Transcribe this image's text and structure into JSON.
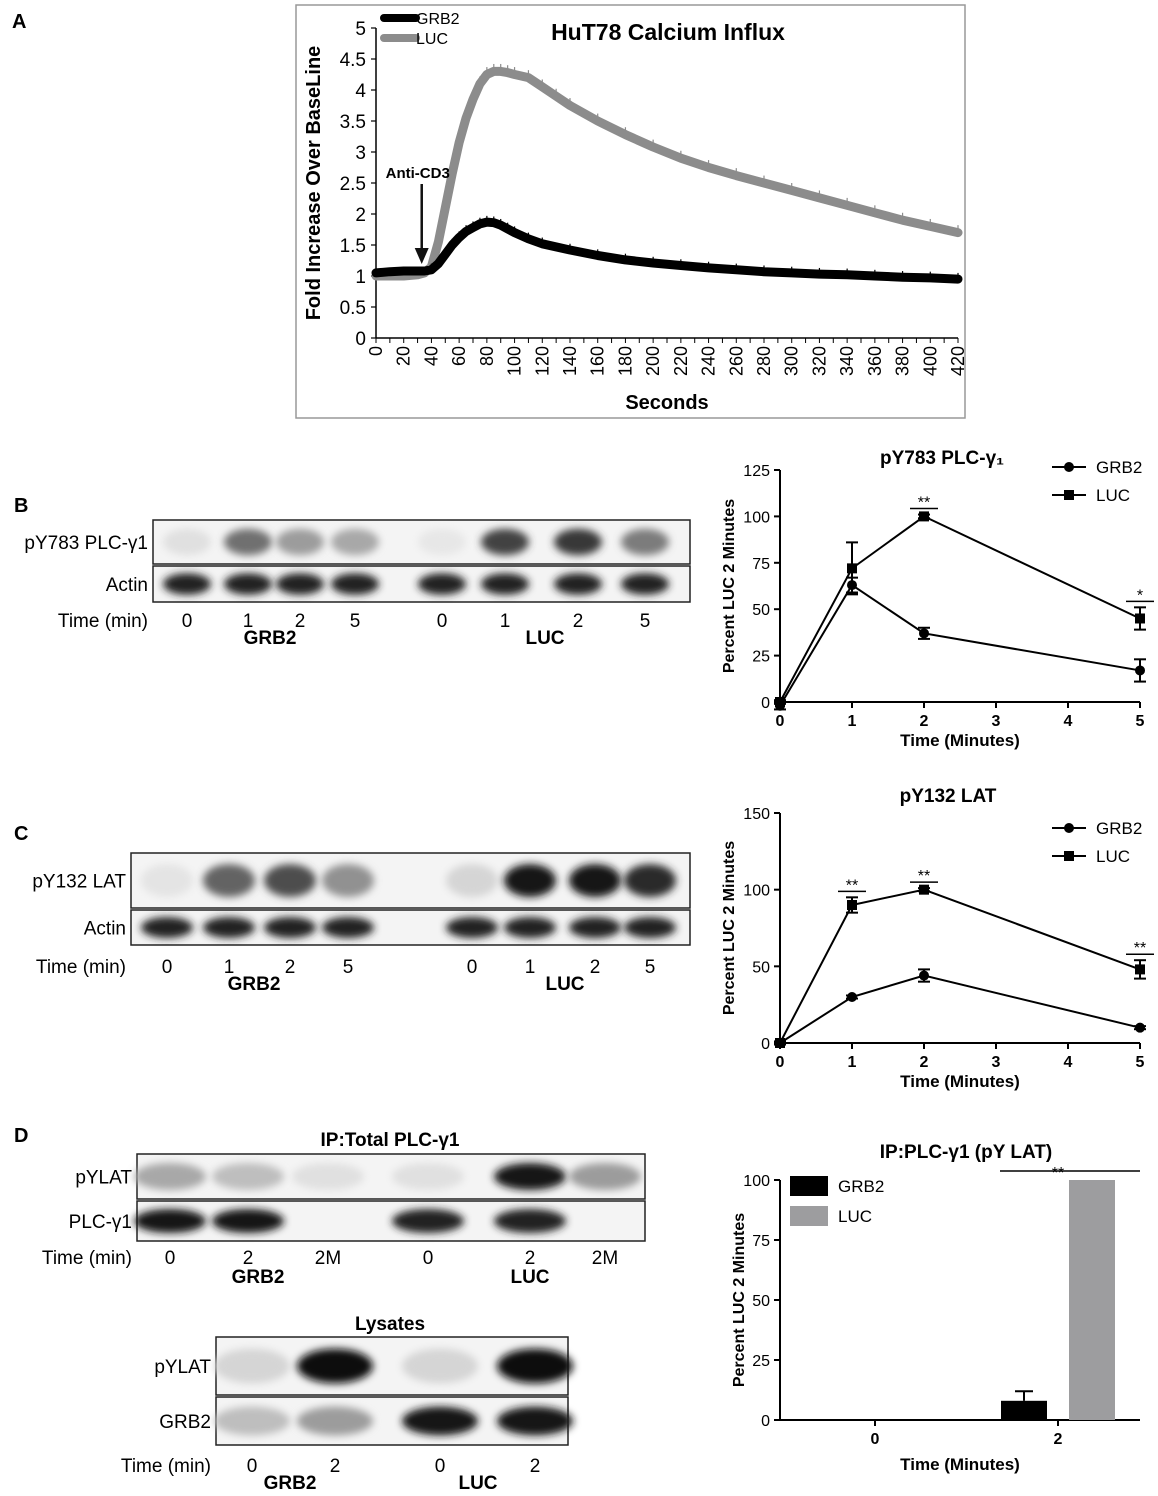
{
  "panel_letters": {
    "a": "A",
    "b": "B",
    "c": "C",
    "d": "D"
  },
  "chart_data": [
    {
      "id": "calcium",
      "type": "line",
      "title": "HuT78 Calcium Influx",
      "xlabel": "Seconds",
      "ylabel": "Fold Increase Over BaseLine",
      "xlim": [
        0,
        420
      ],
      "ylim": [
        0,
        5
      ],
      "xticks": [
        "0",
        "10",
        "20",
        "30",
        "40",
        "50",
        "60",
        "70",
        "80",
        "90",
        "100",
        "110",
        "120",
        "130",
        "140",
        "150",
        "160",
        "170",
        "180",
        "190",
        "200",
        "210",
        "220",
        "230",
        "240",
        "250",
        "260",
        "270",
        "280",
        "290",
        "300",
        "310",
        "320",
        "330",
        "340",
        "350",
        "360",
        "370",
        "380",
        "390",
        "400",
        "410",
        "420"
      ],
      "xtick_labels_shown": [
        "0",
        "20",
        "40",
        "60",
        "80",
        "100",
        "120",
        "140",
        "160",
        "180",
        "200",
        "220",
        "240",
        "260",
        "280",
        "300",
        "320",
        "340",
        "360",
        "380",
        "400",
        "420"
      ],
      "yticks": [
        "0",
        "0.5",
        "1",
        "1.5",
        "2",
        "2.5",
        "3",
        "3.5",
        "4",
        "4.5",
        "5"
      ],
      "annotation": "Anti-CD3",
      "annotation_x": 33,
      "legend_position": "top-left",
      "series": [
        {
          "name": "GRB2",
          "color": "#000000",
          "x": [
            0,
            10,
            20,
            30,
            35,
            40,
            45,
            50,
            55,
            60,
            65,
            70,
            75,
            80,
            85,
            90,
            95,
            100,
            110,
            120,
            140,
            160,
            180,
            200,
            220,
            240,
            260,
            280,
            300,
            320,
            340,
            360,
            380,
            400,
            420
          ],
          "y": [
            1.05,
            1.07,
            1.08,
            1.08,
            1.08,
            1.1,
            1.2,
            1.35,
            1.5,
            1.62,
            1.72,
            1.78,
            1.84,
            1.87,
            1.86,
            1.82,
            1.76,
            1.7,
            1.6,
            1.52,
            1.42,
            1.33,
            1.26,
            1.21,
            1.17,
            1.13,
            1.1,
            1.07,
            1.05,
            1.03,
            1.02,
            1.0,
            0.98,
            0.97,
            0.95
          ]
        },
        {
          "name": "LUC",
          "color": "#8c8c8c",
          "x": [
            0,
            10,
            20,
            30,
            35,
            40,
            45,
            50,
            55,
            60,
            65,
            70,
            75,
            80,
            85,
            90,
            95,
            100,
            110,
            120,
            130,
            140,
            160,
            180,
            200,
            220,
            240,
            260,
            280,
            300,
            320,
            340,
            360,
            380,
            400,
            420
          ],
          "y": [
            1.0,
            1.0,
            1.0,
            1.02,
            1.05,
            1.15,
            1.55,
            2.1,
            2.65,
            3.15,
            3.55,
            3.85,
            4.1,
            4.25,
            4.3,
            4.3,
            4.28,
            4.25,
            4.2,
            4.05,
            3.9,
            3.75,
            3.5,
            3.28,
            3.08,
            2.9,
            2.75,
            2.62,
            2.5,
            2.38,
            2.26,
            2.14,
            2.02,
            1.9,
            1.8,
            1.7
          ]
        }
      ]
    },
    {
      "id": "plc",
      "type": "line",
      "title": "pY783 PLC-γ₁",
      "xlabel": "Time (Minutes)",
      "ylabel": "Percent LUC 2 Minutes",
      "xlim": [
        0,
        5
      ],
      "ylim": [
        0,
        125
      ],
      "xticks": [
        "0",
        "1",
        "2",
        "3",
        "4",
        "5"
      ],
      "yticks": [
        "0",
        "25",
        "50",
        "75",
        "100",
        "125"
      ],
      "legend_position": "top-right",
      "series": [
        {
          "name": "GRB2",
          "marker": "circle",
          "x": [
            0,
            1,
            2,
            5
          ],
          "y": [
            -2,
            63,
            37,
            17
          ],
          "err": [
            2,
            4,
            3,
            6
          ]
        },
        {
          "name": "LUC",
          "marker": "square",
          "x": [
            0,
            1,
            2,
            5
          ],
          "y": [
            0,
            72,
            100,
            45
          ],
          "err": [
            1,
            14,
            1,
            6
          ]
        }
      ],
      "significance": [
        {
          "x": 2,
          "label": "**"
        },
        {
          "x": 5,
          "label": "*"
        }
      ]
    },
    {
      "id": "lat",
      "type": "line",
      "title": "pY132 LAT",
      "xlabel": "Time (Minutes)",
      "ylabel": "Percent LUC 2 Minutes",
      "xlim": [
        0,
        5
      ],
      "ylim": [
        0,
        150
      ],
      "xticks": [
        "0",
        "1",
        "2",
        "3",
        "4",
        "5"
      ],
      "yticks": [
        "0",
        "50",
        "100",
        "150"
      ],
      "legend_position": "top-right",
      "series": [
        {
          "name": "GRB2",
          "marker": "circle",
          "x": [
            0,
            1,
            2,
            5
          ],
          "y": [
            0,
            30,
            44,
            10
          ],
          "err": [
            1,
            1,
            4,
            1
          ]
        },
        {
          "name": "LUC",
          "marker": "square",
          "x": [
            0,
            1,
            2,
            5
          ],
          "y": [
            0,
            90,
            100,
            48
          ],
          "err": [
            1,
            5,
            1,
            6
          ]
        }
      ],
      "significance": [
        {
          "x": 1,
          "label": "**"
        },
        {
          "x": 2,
          "label": "**"
        },
        {
          "x": 5,
          "label": "**"
        }
      ]
    },
    {
      "id": "ip",
      "type": "bar",
      "title": "IP:PLC-γ1 (pY LAT)",
      "xlabel": "Time (Minutes)",
      "ylabel": "Percent LUC 2 Minutes",
      "categories": [
        "0",
        "2"
      ],
      "ylim": [
        0,
        100
      ],
      "yticks": [
        "0",
        "25",
        "50",
        "75",
        "100"
      ],
      "legend_position": "top-left",
      "series": [
        {
          "name": "GRB2",
          "color": "#000000",
          "values": [
            0,
            8
          ],
          "err": [
            0,
            4
          ]
        },
        {
          "name": "LUC",
          "color": "#9d9d9f",
          "values": [
            0,
            100
          ],
          "err": [
            0,
            0
          ]
        }
      ],
      "significance": [
        {
          "label": "**"
        }
      ]
    }
  ],
  "blots": {
    "b": {
      "rows": [
        "pY783 PLC-γ1",
        "Actin"
      ],
      "time_label": "Time (min)",
      "times": [
        "0",
        "1",
        "2",
        "5",
        "0",
        "1",
        "2",
        "5"
      ],
      "groups": [
        "GRB2",
        "LUC"
      ],
      "bands": [
        [
          0.05,
          0.55,
          0.35,
          0.3,
          0.02,
          0.75,
          0.8,
          0.5
        ],
        [
          0.9,
          0.9,
          0.9,
          0.9,
          0.9,
          0.9,
          0.9,
          0.9
        ]
      ]
    },
    "c": {
      "rows": [
        "pY132 LAT",
        "Actin"
      ],
      "time_label": "Time (min)",
      "times": [
        "0",
        "1",
        "2",
        "5",
        "0",
        "1",
        "2",
        "5"
      ],
      "groups": [
        "GRB2",
        "LUC"
      ],
      "bands": [
        [
          0.03,
          0.6,
          0.7,
          0.4,
          0.1,
          0.95,
          0.95,
          0.85
        ],
        [
          0.9,
          0.9,
          0.9,
          0.9,
          0.9,
          0.9,
          0.9,
          0.9
        ]
      ]
    },
    "d_ip": {
      "title": "IP:Total PLC-γ1",
      "rows": [
        "pYLAT",
        "PLC-γ1"
      ],
      "time_label": "Time (min)",
      "times": [
        "0",
        "2",
        "2M",
        "0",
        "2",
        "2M"
      ],
      "groups": [
        "GRB2",
        "LUC"
      ],
      "bands": [
        [
          0.3,
          0.2,
          0.05,
          0.05,
          0.95,
          0.35
        ],
        [
          0.95,
          0.95,
          0,
          0.9,
          0.9,
          0
        ]
      ]
    },
    "d_lys": {
      "title": "Lysates",
      "rows": [
        "pYLAT",
        "GRB2"
      ],
      "time_label": "Time (min)",
      "times": [
        "0",
        "2",
        "0",
        "2"
      ],
      "groups": [
        "GRB2",
        "LUC"
      ],
      "bands": [
        [
          0.1,
          0.98,
          0.1,
          0.98
        ],
        [
          0.2,
          0.35,
          0.95,
          0.95
        ]
      ]
    }
  }
}
